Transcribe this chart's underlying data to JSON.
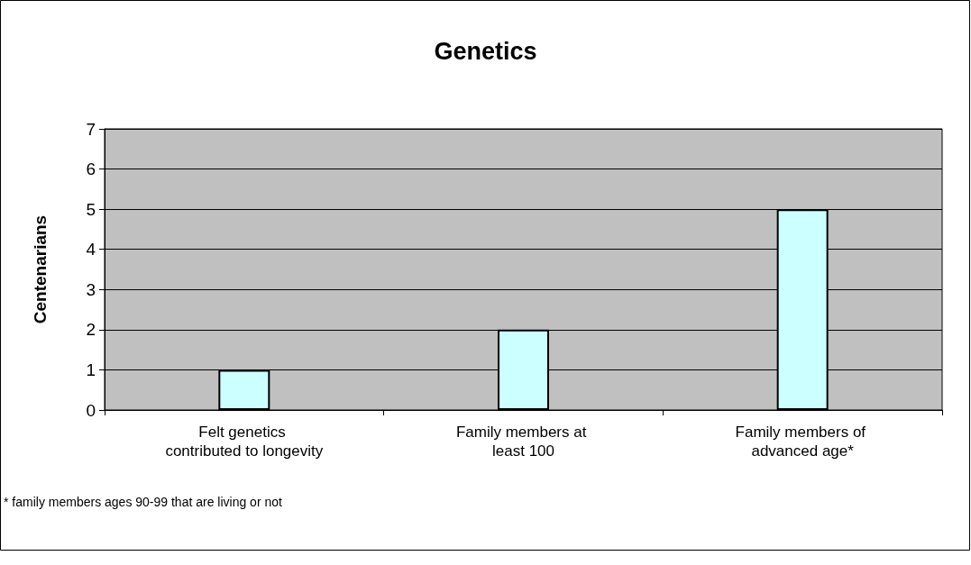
{
  "chart_data": {
    "type": "bar",
    "title": "Genetics",
    "ylabel": "Centenarians",
    "categories": [
      "Felt genetics contributed to longevity",
      "Family members at least 100",
      "Family members of advanced age*"
    ],
    "values": [
      1,
      2,
      5
    ],
    "color": "#ccffff",
    "ylim": [
      0,
      7
    ],
    "yticks": [
      0,
      1,
      2,
      3,
      4,
      5,
      6,
      7
    ],
    "grid": "y",
    "annotations": [
      "* family members ages 90-99 that are living or not"
    ]
  }
}
